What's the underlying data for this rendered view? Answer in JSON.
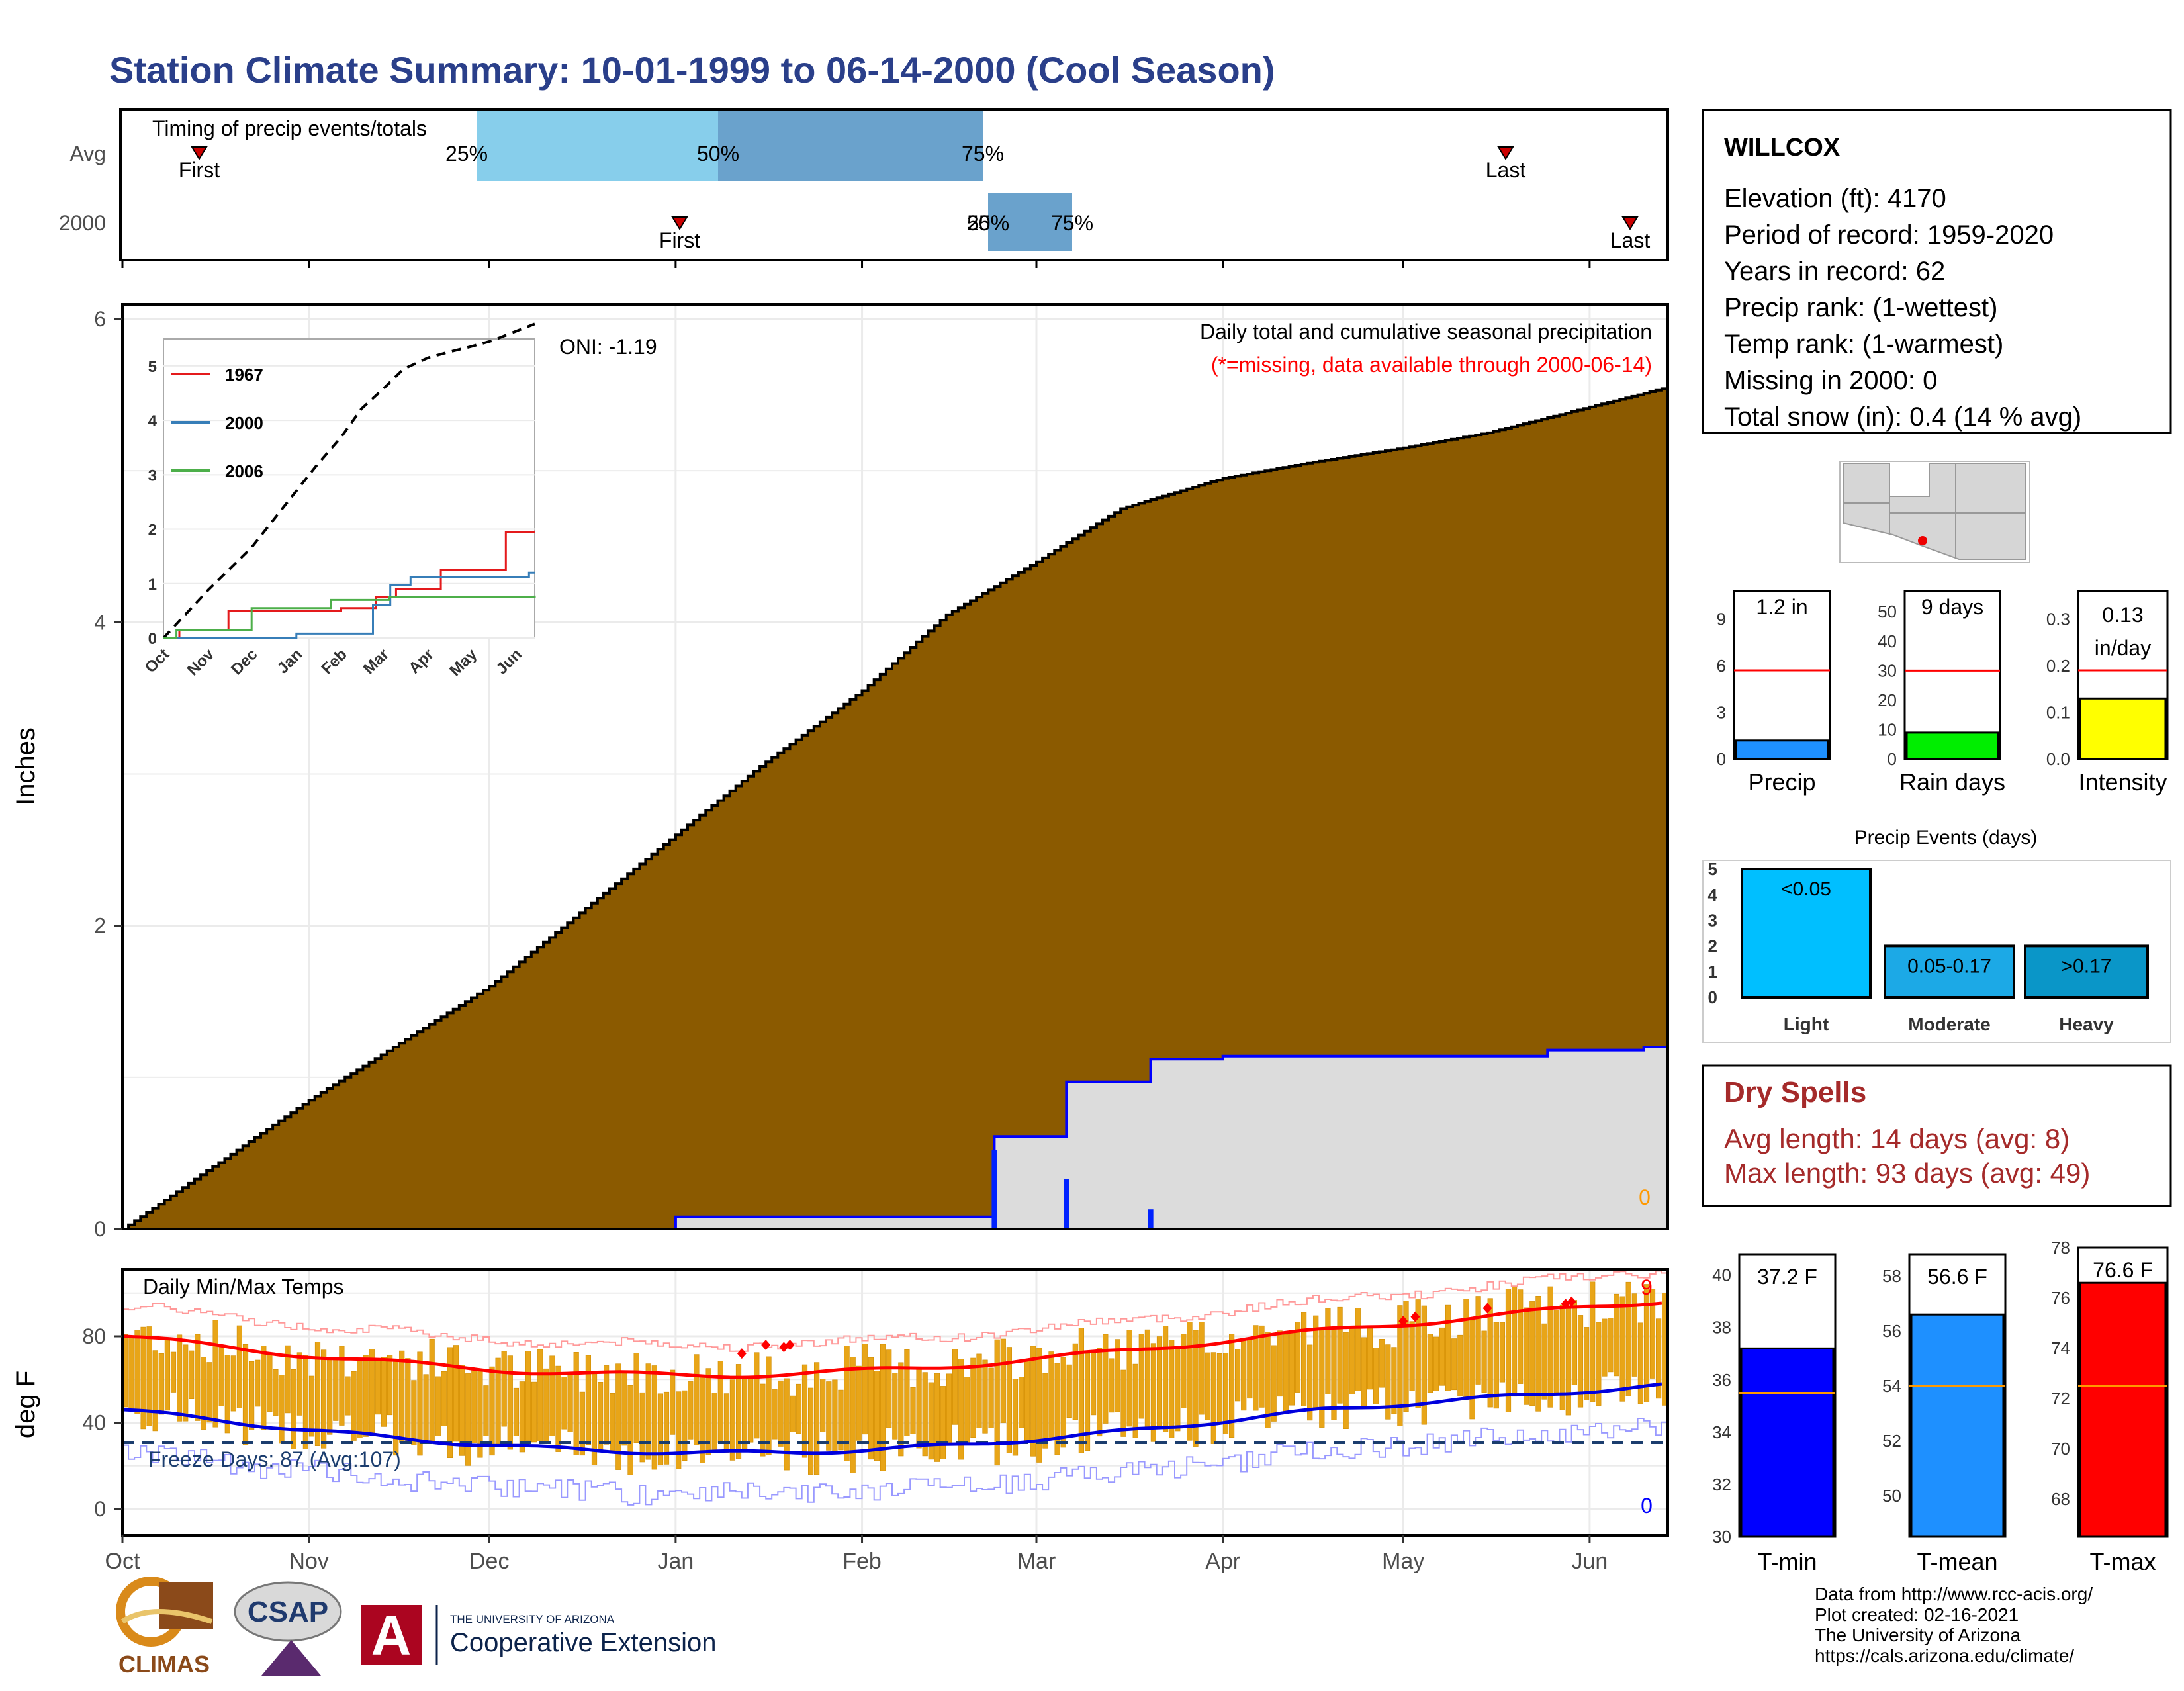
{
  "title": "Station Climate Summary: 10-01-1999 to 06-14-2000 (Cool Season)",
  "timing": {
    "label": "Timing of precip events/totals",
    "rows": [
      "Avg",
      "2000"
    ],
    "first_label": "First",
    "last_label": "Last",
    "pct_labels": [
      "25%",
      "50%",
      "75%"
    ],
    "overlap_labels": [
      "25%",
      "50%"
    ]
  },
  "precip_panel": {
    "ylabel": "Inches",
    "yticks": [
      "0",
      "2",
      "4",
      "6"
    ],
    "oni": "ONI: -1.19",
    "title": "Daily total and cumulative seasonal precipitation",
    "missing_note": "(*=missing, data available through 2000-06-14)",
    "zero_marker": "0"
  },
  "inset": {
    "yticks": [
      "0",
      "1",
      "2",
      "3",
      "4",
      "5"
    ],
    "xticks": [
      "Oct",
      "Nov",
      "Dec",
      "Jan",
      "Feb",
      "Mar",
      "Apr",
      "May",
      "Jun"
    ],
    "legend": [
      {
        "name": "1967",
        "color": "#e41a1c"
      },
      {
        "name": "2000",
        "color": "#377eb8"
      },
      {
        "name": "2006",
        "color": "#4daf4a"
      }
    ]
  },
  "temp_panel": {
    "ylabel": "deg F",
    "title": "Daily Min/Max Temps",
    "yticks": [
      "0",
      "40",
      "80"
    ],
    "freeze": "Freeze Days: 87 (Avg:107)",
    "max_count": "9",
    "min_count": "0"
  },
  "months": [
    "Oct",
    "Nov",
    "Dec",
    "Jan",
    "Feb",
    "Mar",
    "Apr",
    "May",
    "Jun"
  ],
  "station": {
    "name": "WILLCOX",
    "lines": [
      "Elevation (ft): 4170",
      "Period of record: 1959-2020",
      "Years in record: 62",
      "Precip rank:  (1-wettest)",
      "Temp rank:  (1-warmest)",
      "Missing in 2000: 0",
      "Total snow (in): 0.4 (14 % avg)"
    ]
  },
  "mini_bars": [
    {
      "label": "Precip",
      "value_label": "1.2 in",
      "yticks": [
        "0",
        "3",
        "6",
        "9"
      ],
      "color": "#1e90ff"
    },
    {
      "label": "Rain days",
      "value_label": "9 days",
      "yticks": [
        "0",
        "10",
        "20",
        "30",
        "40",
        "50"
      ],
      "color": "#00ee00"
    },
    {
      "label": "Intensity",
      "value_label": "0.13",
      "value_label2": "in/day",
      "yticks": [
        "0.0",
        "0.1",
        "0.2",
        "0.3"
      ],
      "color": "#ffff00"
    }
  ],
  "events": {
    "title": "Precip Events (days)",
    "yticks": [
      "0",
      "1",
      "2",
      "3",
      "4",
      "5"
    ],
    "categories": [
      "Light",
      "Moderate",
      "Heavy"
    ],
    "labels": [
      "<0.05",
      "0.05-0.17",
      ">0.17"
    ],
    "colors": [
      "#00bfff",
      "#1ca9e6",
      "#0a96c8"
    ]
  },
  "dry_spells": {
    "title": "Dry Spells",
    "lines": [
      "Avg length: 14 days (avg: 8)",
      "Max length: 93 days (avg: 49)"
    ]
  },
  "temp_bars": [
    {
      "label": "T-min",
      "value_label": "37.2 F",
      "yticks": [
        "30",
        "32",
        "34",
        "36",
        "38",
        "40"
      ],
      "color": "#0000ff"
    },
    {
      "label": "T-mean",
      "value_label": "56.6 F",
      "yticks": [
        "50",
        "52",
        "54",
        "56",
        "58"
      ],
      "color": "#1e90ff"
    },
    {
      "label": "T-max",
      "value_label": "76.6 F",
      "yticks": [
        "68",
        "70",
        "72",
        "74",
        "76",
        "78"
      ],
      "color": "#ff0000"
    }
  ],
  "footer": [
    "Data from http://www.rcc-acis.org/",
    "Plot created: 02-16-2021",
    "The University of Arizona",
    "https://cals.arizona.edu/climate/"
  ],
  "logos": {
    "climas": "CLIMAS",
    "csap": "CSAP",
    "ua_small": "THE UNIVERSITY OF ARIZONA",
    "ua_big": "Cooperative Extension"
  },
  "chart_data": {
    "type": "area",
    "title": "Daily total and cumulative seasonal precipitation",
    "ylabel": "Inches",
    "ylim": [
      0,
      6
    ],
    "x_dates": [
      "1999-10-01",
      "1999-11-01",
      "1999-12-01",
      "2000-01-01",
      "2000-01-15",
      "2000-02-01",
      "2000-02-15",
      "2000-03-01",
      "2000-03-15",
      "2000-04-01",
      "2000-04-15",
      "2000-05-01",
      "2000-05-15",
      "2000-06-01",
      "2000-06-14"
    ],
    "series": [
      {
        "name": "Avg",
        "values": [
          0.0,
          0.85,
          1.6,
          2.6,
          3.05,
          3.55,
          4.05,
          4.4,
          4.75,
          4.95,
          5.05,
          5.15,
          5.25,
          5.42,
          5.55
        ]
      },
      {
        "name": "2000",
        "values": [
          0.0,
          0.0,
          0.0,
          0.08,
          0.08,
          0.08,
          0.08,
          0.97,
          1.1,
          1.12,
          1.16,
          1.18,
          1.18,
          1.2,
          1.2
        ]
      }
    ],
    "daily_precip": [
      {
        "date": "2000-02-23",
        "value": 0.52
      },
      {
        "date": "2000-03-06",
        "value": 0.33
      },
      {
        "date": "2000-03-20",
        "value": 0.13
      }
    ],
    "summary": {
      "precip_in": 1.2,
      "precip_avg_in": 5.7,
      "rain_days": 9,
      "rain_days_avg": 30,
      "intensity_in_per_day": 0.13,
      "intensity_avg": 0.19,
      "events_light": 5,
      "events_moderate": 2,
      "events_heavy": 2,
      "tmin": 37.2,
      "tmin_avg": 35.5,
      "tmean": 56.6,
      "tmean_avg": 54.0,
      "tmax": 76.6,
      "tmax_avg": 72.5
    }
  }
}
